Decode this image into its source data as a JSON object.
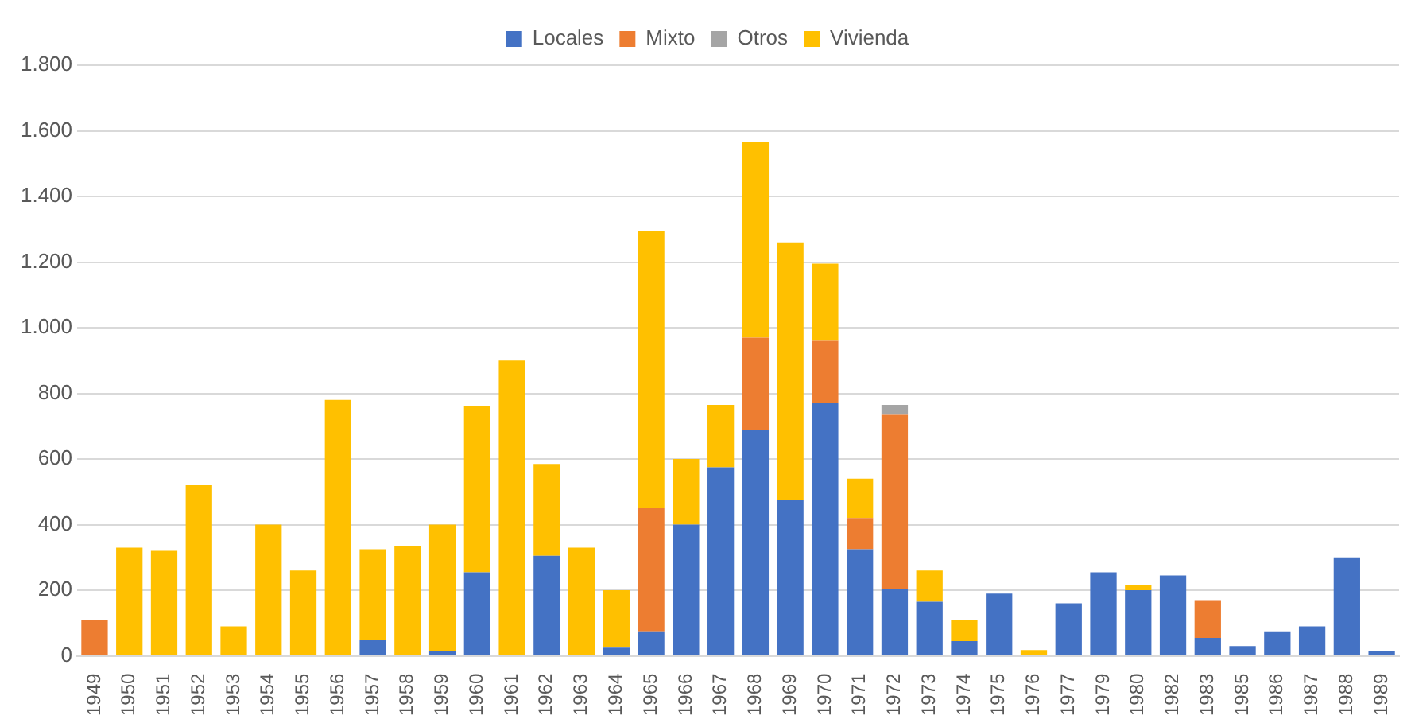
{
  "chart_data": {
    "type": "bar",
    "stacked": true,
    "legend": "top",
    "grid": "y",
    "categories": [
      "1949",
      "1950",
      "1951",
      "1952",
      "1953",
      "1954",
      "1955",
      "1956",
      "1957",
      "1958",
      "1959",
      "1960",
      "1961",
      "1962",
      "1963",
      "1964",
      "1965",
      "1966",
      "1967",
      "1968",
      "1969",
      "1970",
      "1971",
      "1972",
      "1973",
      "1974",
      "1975",
      "1976",
      "1977",
      "1979",
      "1980",
      "1982",
      "1983",
      "1985",
      "1986",
      "1987",
      "1988",
      "1989"
    ],
    "series": [
      {
        "name": "Locales",
        "color": "#4472c4",
        "values": [
          null,
          null,
          null,
          null,
          null,
          null,
          null,
          null,
          50,
          null,
          15,
          255,
          null,
          305,
          null,
          25,
          75,
          400,
          575,
          690,
          475,
          770,
          325,
          205,
          165,
          45,
          190,
          null,
          160,
          255,
          200,
          245,
          55,
          30,
          75,
          90,
          300,
          15
        ]
      },
      {
        "name": "Mixto",
        "color": "#ed7d31",
        "values": [
          110,
          null,
          null,
          null,
          null,
          null,
          null,
          null,
          null,
          null,
          null,
          null,
          null,
          null,
          null,
          null,
          375,
          null,
          null,
          280,
          null,
          190,
          95,
          530,
          null,
          null,
          null,
          null,
          null,
          null,
          null,
          null,
          115,
          null,
          null,
          null,
          null,
          null
        ]
      },
      {
        "name": "Otros",
        "color": "#a5a5a5",
        "values": [
          null,
          null,
          null,
          null,
          null,
          null,
          null,
          null,
          null,
          null,
          null,
          null,
          null,
          null,
          null,
          null,
          null,
          null,
          null,
          null,
          null,
          null,
          null,
          30,
          null,
          null,
          null,
          null,
          null,
          null,
          null,
          null,
          null,
          null,
          null,
          null,
          null,
          null
        ]
      },
      {
        "name": "Vivienda",
        "color": "#ffc000",
        "values": [
          null,
          330,
          320,
          520,
          90,
          400,
          260,
          780,
          275,
          335,
          385,
          505,
          900,
          280,
          330,
          175,
          845,
          200,
          190,
          595,
          785,
          235,
          120,
          null,
          95,
          65,
          null,
          18,
          null,
          null,
          15,
          null,
          null,
          null,
          null,
          null,
          null,
          null
        ]
      }
    ],
    "ylim": [
      0,
      1800
    ],
    "yticks": [
      0,
      200,
      400,
      600,
      800,
      {
        "value": 1000,
        "label": "1.000"
      },
      {
        "value": 1200,
        "label": "1.200"
      },
      {
        "value": 1400,
        "label": "1.400"
      },
      {
        "value": 1600,
        "label": "1.600"
      },
      {
        "value": 1800,
        "label": "1.800"
      }
    ]
  }
}
